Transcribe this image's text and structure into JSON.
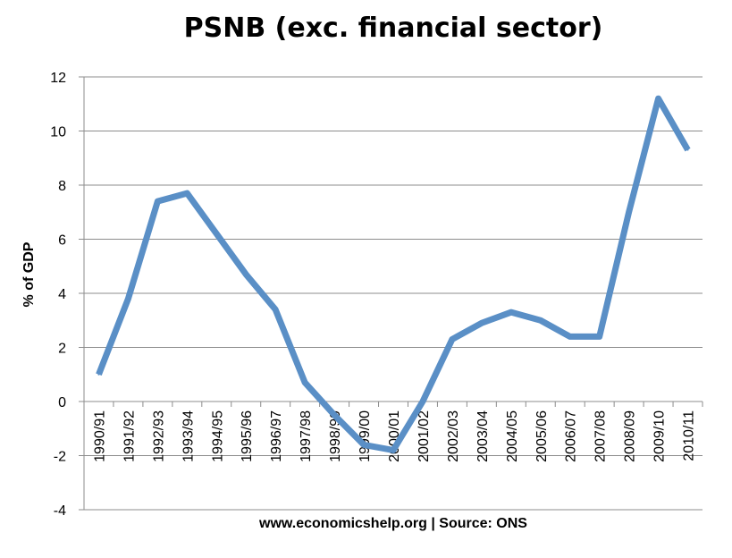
{
  "chart_data": {
    "type": "line",
    "title": "PSNB (exc. financial sector)",
    "ylabel": "% of GDP",
    "xlabel": "",
    "source_note": "www.economicshelp.org | Source: ONS",
    "categories": [
      "1990/91",
      "1991/92",
      "1992/93",
      "1993/94",
      "1994/95",
      "1995/96",
      "1996/97",
      "1997/98",
      "1998/99",
      "1999/00",
      "2000/01",
      "2001/02",
      "2002/03",
      "2003/04",
      "2004/05",
      "2005/06",
      "2006/07",
      "2007/08",
      "2008/09",
      "2009/10",
      "2010/11"
    ],
    "series": [
      {
        "values": [
          1.0,
          3.8,
          7.4,
          7.7,
          6.2,
          4.7,
          3.4,
          0.7,
          -0.5,
          -1.6,
          -1.8,
          0.0,
          2.3,
          2.9,
          3.3,
          3.0,
          2.4,
          2.4,
          7.0,
          11.2,
          9.3
        ],
        "color": "#5a8fc6"
      }
    ],
    "ylim": [
      -4,
      12
    ],
    "yticks": [
      -4,
      -2,
      0,
      2,
      4,
      6,
      8,
      10,
      12
    ],
    "grid": true,
    "legend": "none"
  }
}
